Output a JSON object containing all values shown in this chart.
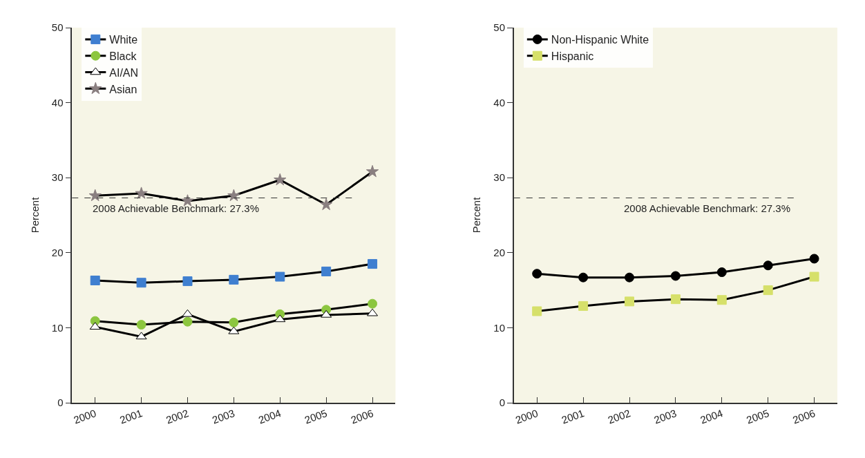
{
  "chart_data": [
    {
      "type": "line",
      "ylabel": "Percent",
      "categories": [
        "2000",
        "2001",
        "2002",
        "2003",
        "2004",
        "2005",
        "2006"
      ],
      "ylim": [
        0,
        50
      ],
      "yticks": [
        0,
        10,
        20,
        30,
        40,
        50
      ],
      "legend": "top left",
      "grid": false,
      "series": [
        {
          "name": "White",
          "color": "#3f7fd0",
          "marker": "square",
          "values": [
            16.3,
            16.0,
            16.2,
            16.4,
            16.8,
            17.5,
            18.5
          ]
        },
        {
          "name": "Black",
          "color": "#8cc63f",
          "marker": "circle",
          "values": [
            10.9,
            10.4,
            10.8,
            10.7,
            11.8,
            12.4,
            13.2
          ]
        },
        {
          "name": "AI/AN",
          "color": "#ffffff",
          "marker": "triangle",
          "values": [
            10.1,
            8.8,
            11.8,
            9.5,
            11.1,
            11.7,
            11.9
          ]
        },
        {
          "name": "Asian",
          "color": "#8a7f80",
          "marker": "star",
          "values": [
            27.6,
            27.9,
            26.9,
            27.6,
            29.7,
            26.4,
            30.8
          ]
        }
      ],
      "ref_lines": [
        {
          "axis": "y",
          "value": 27.3,
          "label": "2008 Achievable Benchmark: 27.3%",
          "line_style": "dashed",
          "color": "#333333"
        }
      ]
    },
    {
      "type": "line",
      "ylabel": "Percent",
      "categories": [
        "2000",
        "2001",
        "2002",
        "2003",
        "2004",
        "2005",
        "2006"
      ],
      "ylim": [
        0,
        50
      ],
      "yticks": [
        0,
        10,
        20,
        30,
        40,
        50
      ],
      "legend": "top left",
      "grid": false,
      "series": [
        {
          "name": "Non-Hispanic White",
          "color": "#000000",
          "marker": "circle",
          "values": [
            17.2,
            16.7,
            16.7,
            16.9,
            17.4,
            18.3,
            19.2
          ]
        },
        {
          "name": "Hispanic",
          "color": "#d6e06a",
          "marker": "square",
          "values": [
            12.2,
            12.9,
            13.5,
            13.8,
            13.7,
            15.0,
            16.8
          ]
        }
      ],
      "ref_lines": [
        {
          "axis": "y",
          "value": 27.3,
          "label": "2008 Achievable Benchmark: 27.3%",
          "line_style": "dashed",
          "color": "#333333"
        }
      ]
    }
  ]
}
